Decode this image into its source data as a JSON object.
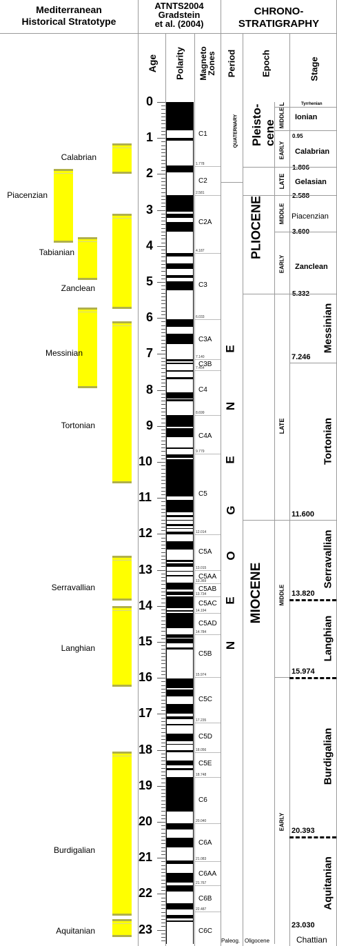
{
  "headers": {
    "med": "Mediterranean\nHistorical Stratotype",
    "atnts": "ATNTS2004\nGradstein\net al. (2004)",
    "chrono": "CHRONO-\nSTRATIGRAPHY",
    "age": "Age",
    "polarity": "Polarity",
    "magneto": "Magneto\nZones",
    "period": "Period",
    "epoch": "Epoch",
    "stage": "Stage"
  },
  "ages": [
    "0",
    "1",
    "2",
    "3",
    "4",
    "5",
    "6",
    "7",
    "8",
    "9",
    "10",
    "11",
    "12",
    "13",
    "14",
    "15",
    "16",
    "17",
    "18",
    "19",
    "20",
    "21",
    "22",
    "23"
  ],
  "med_labels": [
    {
      "text": "Calabrian",
      "age": 1.55
    },
    {
      "text": "Piacenzian",
      "age": 2.6
    },
    {
      "text": "Tabianian",
      "age": 4.2
    },
    {
      "text": "Zanclean",
      "age": 5.2
    },
    {
      "text": "Messinian",
      "age": 7.0
    },
    {
      "text": "Tortonian",
      "age": 9.0
    },
    {
      "text": "Serravallian",
      "age": 13.5
    },
    {
      "text": "Langhian",
      "age": 15.2
    },
    {
      "text": "Burdigalian",
      "age": 20.8
    },
    {
      "text": "Aquitanian",
      "age": 23.05
    }
  ],
  "med_bars": [
    {
      "col": "c",
      "top": 1.15,
      "bot": 2.0
    },
    {
      "col": "a",
      "top": 1.85,
      "bot": 3.9
    },
    {
      "col": "b",
      "top": 3.75,
      "bot": 4.95
    },
    {
      "col": "c",
      "top": 3.1,
      "bot": 5.75
    },
    {
      "col": "b",
      "top": 5.7,
      "bot": 7.95
    },
    {
      "col": "c",
      "top": 6.1,
      "bot": 10.6
    },
    {
      "col": "c",
      "top": 12.6,
      "bot": 13.85
    },
    {
      "col": "c",
      "top": 14.0,
      "bot": 16.25
    },
    {
      "col": "c",
      "top": 18.05,
      "bot": 22.6
    },
    {
      "col": "c",
      "top": 22.7,
      "bot": 23.2
    }
  ],
  "magneto_zones": [
    {
      "name": "C1",
      "age": 0.9,
      "bnd": "1.778",
      "bage": 1.778
    },
    {
      "name": "C2",
      "age": 2.2,
      "bnd": "2.581",
      "bage": 2.581
    },
    {
      "name": "C2A",
      "age": 3.35,
      "bnd": "4.187",
      "bage": 4.187
    },
    {
      "name": "C3",
      "age": 5.1,
      "bnd": "6.033",
      "bage": 6.033
    },
    {
      "name": "C3A",
      "age": 6.6,
      "bnd": "7.140",
      "bage": 7.14
    },
    {
      "name": "C3B",
      "age": 7.3,
      "bnd": "7.454",
      "bage": 7.454
    },
    {
      "name": "C4",
      "age": 8.0,
      "bnd": "8.699",
      "bage": 8.699
    },
    {
      "name": "C4A",
      "age": 9.3,
      "bnd": "9.779",
      "bage": 9.779
    },
    {
      "name": "C5",
      "age": 10.9,
      "bnd": "12.014",
      "bage": 12.014
    },
    {
      "name": "C5A",
      "age": 12.5,
      "bnd": "13.015",
      "bage": 13.015
    },
    {
      "name": "C5AA",
      "age": 13.2,
      "bnd": "13.369",
      "bage": 13.369
    },
    {
      "name": "C5AB",
      "age": 13.55,
      "bnd": "13.734",
      "bage": 13.734
    },
    {
      "name": "C5AC",
      "age": 13.95,
      "bnd": "14.194",
      "bage": 14.194
    },
    {
      "name": "C5AD",
      "age": 14.5,
      "bnd": "14.784",
      "bage": 14.784
    },
    {
      "name": "C5B",
      "age": 15.35,
      "bnd": "15.974",
      "bage": 15.974
    },
    {
      "name": "C5C",
      "age": 16.6,
      "bnd": "17.235",
      "bage": 17.235
    },
    {
      "name": "C5D",
      "age": 17.65,
      "bnd": "18.056",
      "bage": 18.056
    },
    {
      "name": "C5E",
      "age": 18.4,
      "bnd": "18.748",
      "bage": 18.748
    },
    {
      "name": "C6",
      "age": 19.4,
      "bnd": "20.040",
      "bage": 20.04
    },
    {
      "name": "C6A",
      "age": 20.6,
      "bnd": "21.083",
      "bage": 21.083
    },
    {
      "name": "C6AA",
      "age": 21.45,
      "bnd": "21.767",
      "bage": 21.767
    },
    {
      "name": "C6B",
      "age": 22.15,
      "bnd": "22.487",
      "bage": 22.487
    },
    {
      "name": "C6C",
      "age": 23.05,
      "bnd": "",
      "bage": null
    }
  ],
  "polarity_normal": [
    [
      0,
      0.78
    ],
    [
      0.99,
      1.07
    ],
    [
      1.77,
      1.95
    ],
    [
      2.58,
      3.04
    ],
    [
      3.11,
      3.22
    ],
    [
      3.33,
      3.6
    ],
    [
      4.19,
      4.3
    ],
    [
      4.49,
      4.63
    ],
    [
      4.8,
      4.89
    ],
    [
      4.98,
      5.23
    ],
    [
      6.03,
      6.25
    ],
    [
      6.44,
      6.73
    ],
    [
      7.14,
      7.21
    ],
    [
      7.25,
      7.28
    ],
    [
      7.45,
      7.49
    ],
    [
      7.65,
      7.7
    ],
    [
      8.07,
      8.23
    ],
    [
      8.26,
      8.31
    ],
    [
      8.7,
      9.03
    ],
    [
      9.07,
      9.31
    ],
    [
      9.59,
      9.64
    ],
    [
      9.78,
      9.88
    ],
    [
      9.92,
      10.95
    ],
    [
      11.05,
      11.4
    ],
    [
      11.48,
      11.53
    ],
    [
      11.61,
      11.63
    ],
    [
      11.73,
      11.79
    ],
    [
      11.84,
      11.86
    ],
    [
      11.93,
      12.01
    ],
    [
      12.2,
      12.43
    ],
    [
      12.72,
      12.77
    ],
    [
      12.82,
      12.91
    ],
    [
      13.02,
      13.05
    ],
    [
      13.14,
      13.18
    ],
    [
      13.36,
      13.54
    ],
    [
      13.6,
      13.7
    ],
    [
      13.73,
      14.07
    ],
    [
      14.11,
      14.16
    ],
    [
      14.19,
      14.61
    ],
    [
      14.78,
      14.88
    ],
    [
      14.9,
      15.03
    ],
    [
      15.16,
      15.22
    ],
    [
      16.01,
      16.29
    ],
    [
      16.33,
      16.52
    ],
    [
      16.72,
      17.0
    ],
    [
      17.06,
      17.14
    ],
    [
      17.28,
      17.31
    ],
    [
      17.54,
      17.75
    ],
    [
      17.83,
      17.86
    ],
    [
      18.01,
      18.06
    ],
    [
      18.29,
      18.43
    ],
    [
      18.5,
      18.56
    ],
    [
      18.75,
      19.72
    ],
    [
      20.04,
      20.21
    ],
    [
      20.44,
      20.71
    ],
    [
      21.08,
      21.16
    ],
    [
      21.42,
      21.69
    ],
    [
      21.77,
      21.93
    ],
    [
      22.27,
      22.44
    ],
    [
      22.59,
      22.68
    ],
    [
      22.74,
      22.77
    ]
  ],
  "period": {
    "neogene_letters": [
      "E",
      "N",
      "E",
      "G",
      "O",
      "E",
      "N"
    ],
    "quaternary": "QUATERNARY",
    "paleog": "Paleog."
  },
  "epochs": {
    "pleistocene": "Pleisto-\ncene",
    "pliocene": "PLIOCENE",
    "miocene": "MIOCENE",
    "oligocene": "Oligocene"
  },
  "subepochs": [
    {
      "text": "MIDDLE",
      "age": 0.45
    },
    {
      "text": "L",
      "age": 0.06
    },
    {
      "text": "EARLY",
      "age": 1.35
    },
    {
      "text": "LATE",
      "age": 2.2
    },
    {
      "text": "MIDDLE",
      "age": 3.1
    },
    {
      "text": "EARLY",
      "age": 4.5
    },
    {
      "text": "LATE",
      "age": 9.0
    },
    {
      "text": "MIDDLE",
      "age": 13.7
    },
    {
      "text": "EARLY",
      "age": 20.0
    }
  ],
  "stages_h": [
    {
      "name": "Tyrrhenian",
      "age": 0.05,
      "num": ""
    },
    {
      "name": "Ionian",
      "age": 0.45,
      "num": "0.95",
      "numage": 0.98
    },
    {
      "name": "Calabrian",
      "age": 1.4,
      "num": "1.806",
      "numage": 1.84
    },
    {
      "name": "Gelasian",
      "age": 2.25,
      "num": "2.588",
      "numage": 2.62
    },
    {
      "name": "Piacenzian",
      "age": 3.2,
      "num": "3.600",
      "numage": 3.63
    },
    {
      "name": "Zanclean",
      "age": 4.6,
      "num": "5.332",
      "numage": 5.35
    }
  ],
  "stages_v": [
    {
      "name": "Messinian",
      "top": 5.332,
      "bot": 7.246,
      "num": "7.246"
    },
    {
      "name": "Tortonian",
      "top": 7.246,
      "bot": 11.6,
      "num": "11.600"
    },
    {
      "name": "Serravallian",
      "top": 11.6,
      "bot": 13.82,
      "num": "13.820"
    },
    {
      "name": "Langhian",
      "top": 13.82,
      "bot": 15.974,
      "num": "15.974"
    },
    {
      "name": "Burdigalian",
      "top": 15.974,
      "bot": 20.393,
      "num": "20.393"
    },
    {
      "name": "Aquitanian",
      "top": 20.393,
      "bot": 23.03,
      "num": "23.030"
    }
  ],
  "chattian": "Chattian"
}
